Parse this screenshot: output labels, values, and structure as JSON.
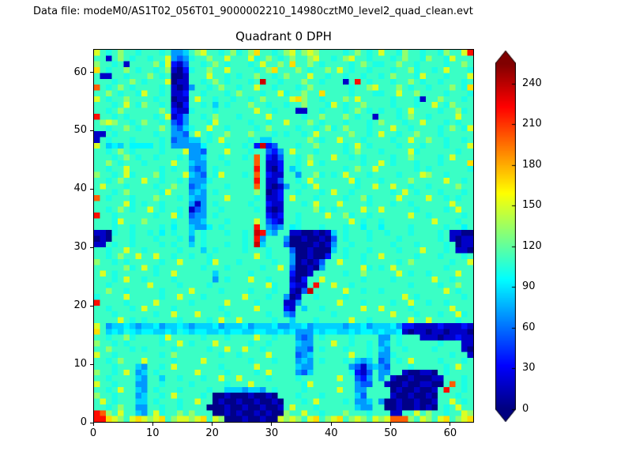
{
  "header": {
    "datafile_label": "Data file: modeM0/AS1T02_056T01_9000002210_14980cztM0_level2_quad_clean.evt"
  },
  "chart_data": {
    "type": "heatmap",
    "title": "Quadrant 0 DPH",
    "xlabel": "",
    "ylabel": "",
    "x_range": [
      0,
      64
    ],
    "y_range": [
      0,
      64
    ],
    "x_ticks": [
      0,
      10,
      20,
      30,
      40,
      50,
      60
    ],
    "y_ticks": [
      0,
      10,
      20,
      30,
      40,
      50,
      60
    ],
    "grid": false,
    "colorbar": {
      "colormap": "jet",
      "vmin": 0,
      "vmax": 255,
      "ticks": [
        0,
        30,
        60,
        90,
        120,
        150,
        180,
        210,
        240
      ],
      "extend": "both",
      "position": "right"
    },
    "matrix": {
      "description": "64x64 detector plane histogram counts, one char per pixel, rows listed top (y=63) to bottom (y=0), chars map to approximate count values via char_values",
      "order": "top-to-bottom",
      "char_values": {
        "0": 2,
        "1": 18,
        "2": 36,
        "3": 54,
        "4": 70,
        "5": 84,
        "6": 94,
        "7": 102,
        "8": 110,
        "9": 132,
        "a": 150,
        "b": 168,
        "c": 200,
        "d": 220,
        "e": 236,
        "f": 252
      },
      "rows": [
        [
          "a8789887",
          "88878445",
          "89a88789",
          "789b8878",
          "9a89a988",
          "88789878",
          "a8879887",
          "887988ad"
        ],
        [
          "88189878",
          "8788a434",
          "788988a8",
          "88a78987",
          "89889a88",
          "789a8878",
          "88789887",
          "9887a888"
        ],
        [
          "98878188",
          "8897a213",
          "88789878",
          "8878a889",
          "8b889878",
          "88878987",
          "78898878",
          "88878898"
        ],
        [
          "b8788987",
          "88789102",
          "788988a8",
          "888789b8",
          "88987889",
          "8a878878",
          "88788978",
          "878a8887"
        ],
        [
          "81188788",
          "89878001",
          "888a8878",
          "78898878",
          "9888a887",
          "88788788",
          "7898887a",
          "8887888a"
        ],
        [
          "88878898",
          "7888a011",
          "88789878",
          "8878e887",
          "88898878",
          "8818d878",
          "88788987",
          "88788878"
        ],
        [
          "c8789878",
          "88878101",
          "48878988",
          "788a8878",
          "88789888",
          "8887889a",
          "88898788",
          "7888987b"
        ],
        [
          "88987887",
          "a8878112",
          "88788878",
          "9888788a",
          "788988b8",
          "88878887",
          "788a8898",
          "88878887"
        ],
        [
          "a8788988",
          "88788011",
          "8a887887",
          "88789888",
          "8ab98878",
          "8898a888",
          "88788871",
          "88988878"
        ],
        [
          "88878a87",
          "98878102",
          "88785878",
          "88988788",
          "78898887",
          "a8788988",
          "88788878",
          "8a879888"
        ],
        [
          "88789888",
          "88898211",
          "78887888",
          "888a8878",
          "88118878",
          "88789878",
          "78878a88",
          "88788978"
        ],
        [
          "d8878788",
          "8878a124",
          "88789888",
          "78888a88",
          "88878898",
          "88987881",
          "88878988",
          "78888a88"
        ],
        [
          "89a98878",
          "98878324",
          "8887a888",
          "88788788",
          "a8889878",
          "88788878",
          "9888788a",
          "88878788"
        ],
        [
          "88788987",
          "88898435",
          "788a8878",
          "88878988",
          "88788789",
          "78988878",
          "88a88788",
          "8878987a"
        ],
        [
          "11878888",
          "88788443",
          "8a878898",
          "88988878",
          "78878a88",
          "88898878",
          "a8878898",
          "88788888"
        ],
        [
          "18788878",
          "88878344",
          "55878a88",
          "88785588",
          "88889878",
          "8a888788",
          "88788a88",
          "98878878"
        ],
        [
          "a8565866",
          "66878444",
          "44688878",
          "8782e238",
          "88788988",
          "8878a878",
          "88878887",
          "8887888a"
        ],
        [
          "88789878",
          "8887888a",
          "443888a8",
          "88788324",
          "8a888788",
          "88789888",
          "78888a78",
          "88888788"
        ],
        [
          "88878987",
          "88788878",
          "44588788",
          "878c8213",
          "88789888",
          "a8878788",
          "88788988",
          "8878a888"
        ],
        [
          "88987888",
          "78888a88",
          "54488878",
          "888c8112",
          "8878a878",
          "88888788",
          "a8788878",
          "8878888b"
        ],
        [
          "88788a88",
          "88878788",
          "43487888",
          "888d8102",
          "85788888",
          "8878988a",
          "88888878",
          "78888887"
        ],
        [
          "98878a78",
          "8897888a",
          "54387a88",
          "878c8211",
          "88488978",
          "78a88878",
          "8887888a",
          "98878888"
        ],
        [
          "88789888",
          "a8878878",
          "44478888",
          "888d8113",
          "8878a888",
          "888a7888",
          "78888988",
          "888a8878"
        ],
        [
          "8a888788",
          "88788988",
          "34588878",
          "888c8101",
          "48878a88",
          "8888788a",
          "88a88788",
          "78888988"
        ],
        [
          "88878988",
          "8887a888",
          "45487888",
          "88898012",
          "88788878",
          "a8878888",
          "8878a878",
          "88788878"
        ],
        [
          "c8788878",
          "88988878",
          "544888a8",
          "88878112",
          "8a888788",
          "88788978",
          "888a8888",
          "a8878788"
        ],
        [
          "88888a78",
          "78878888",
          "41487888",
          "88788211",
          "88878a88",
          "8a888878",
          "88788788",
          "8888a888"
        ],
        [
          "88789878",
          "8a878878",
          "13488788",
          "88878101",
          "88888978",
          "78888a88",
          "a8888878",
          "88878a88"
        ],
        [
          "d8878888",
          "88788a78",
          "34487888",
          "88888212",
          "8878888a",
          "88978878",
          "88888a88",
          "78888878"
        ],
        [
          "8887a888",
          "98888788",
          "44588878",
          "888a8321",
          "88788888",
          "888a8788",
          "78888888",
          "8a888788"
        ],
        [
          "88878878",
          "88878688",
          "54468788",
          "888d8434",
          "86788878",
          "88788688",
          "68888788",
          "88878868"
        ],
        [
          "11078878",
          "87868788",
          "58788878",
          "878ed548",
          "81100101",
          "58788878",
          "87888788",
          "88781100"
        ],
        [
          "01088878",
          "88788878",
          "48788888",
          "878d4888",
          "40010010",
          "38788878",
          "88878888",
          "88781011"
        ],
        [
          "11878878",
          "88878788",
          "58788878",
          "878e5888",
          "30000101",
          "48878888",
          "88788878",
          "88878011"
        ],
        [
          "88788a88",
          "78888878",
          "88587888",
          "87888788",
          "83001000",
          "58788878",
          "8887888a",
          "88878110"
        ],
        [
          "8878988a",
          "88a88788",
          "78878888",
          "888a8788",
          "84001002",
          "88788788",
          "a8888878",
          "88788878"
        ],
        [
          "98878788",
          "888788a8",
          "8887a888",
          "78888878",
          "84010138",
          "8a888788",
          "88878988",
          "8888788a"
        ],
        [
          "88888978",
          "a8788888",
          "88788878",
          "8888788a",
          "83001048",
          "88888a78",
          "78a88888",
          "88878888"
        ],
        [
          "8a878888",
          "88788a88",
          "88885888",
          "88788888",
          "82001888",
          "88788988",
          "888a8788",
          "78888a88"
        ],
        [
          "88878a88",
          "78888788",
          "88884878",
          "88a88788",
          "810288a8",
          "88888788",
          "88788888",
          "8a887888"
        ],
        [
          "88788888",
          "8a888878",
          "88878888",
          "88888a78",
          "82118d88",
          "a8878888",
          "88888788",
          "88788988"
        ],
        [
          "88988788",
          "88878888",
          "a8888788",
          "88788878",
          "8103e888",
          "88a88788",
          "78888888",
          "888a8788"
        ],
        [
          "78888a88",
          "888788a8",
          "88788888",
          "8a888788",
          "40188788",
          "88788888",
          "8888a878",
          "88888878"
        ],
        [
          "d8888788",
          "88a88888",
          "788888a8",
          "88878888",
          "11488888",
          "8a888788",
          "88788a88",
          "78878888"
        ],
        [
          "88788878",
          "a8888788",
          "88888788",
          "888a8888",
          "21858878",
          "88888a88",
          "a8888788",
          "8888a888"
        ],
        [
          "88878888",
          "88788a88",
          "8a888878",
          "88888788",
          "43888888",
          "78888888",
          "88a88878",
          "88788a78"
        ],
        [
          "8888a878",
          "78888878",
          "88878a88",
          "a8888878",
          "85888788",
          "888a8878",
          "88888a88",
          "a8888788"
        ],
        [
          "a8455654",
          "55645565",
          "45556455",
          "56455564",
          "45564555",
          "55455645",
          "55642211",
          "11211121"
        ],
        [
          "b8565765",
          "66556576",
          "56655656",
          "65566556",
          "56444656",
          "65565665",
          "65561011",
          "01101110"
        ],
        [
          "88788978",
          "8887a888",
          "88788878",
          "888a8878",
          "88434878",
          "88878888",
          "44878881",
          "11011211"
        ],
        [
          "98878788",
          "888788a8",
          "7888a888",
          "88788788",
          "88544888",
          "a8878878",
          "45878888",
          "88788811"
        ],
        [
          "88988878",
          "78888788",
          "888788a8",
          "8a887888",
          "88443878",
          "88788878",
          "54887888",
          "87888810"
        ],
        [
          "a8878888",
          "88878988",
          "88888788",
          "78888a88",
          "88345888",
          "888a8878",
          "44788888",
          "88887881"
        ],
        [
          "88789888",
          "a8888788",
          "88a88888",
          "88788878",
          "88454878",
          "88785458",
          "34878a88",
          "88788878"
        ],
        [
          "88878885",
          "48878a88",
          "88888788",
          "888a8888",
          "88544888",
          "88843145",
          "43888788",
          "88878a88"
        ],
        [
          "98878a84",
          "58788888",
          "8a888878",
          "88878a88",
          "88435888",
          "88872138",
          "44881001",
          "10878888"
        ],
        [
          "88788885",
          "48858878",
          "88788a88",
          "a8888788",
          "88788888",
          "8a883248",
          "48100100",
          "01188878"
        ],
        [
          "a8878884",
          "48878888",
          "78888878",
          "88a88888",
          "8887a888",
          "88884338",
          "81001001",
          "1008c878"
        ],
        [
          "8878a885",
          "48788878",
          "88878855",
          "54554878",
          "88878888",
          "8a884488",
          "88010010",
          "018d8878"
        ],
        [
          "98878884",
          "58878a88",
          "88780010",
          "00100108",
          "88788878",
          "88885388",
          "88100100",
          "10888788"
        ],
        [
          "8a878885",
          "58788878",
          "8a880100",
          "10010010",
          "88878a88",
          "88784458",
          "40010010",
          "0188a878"
        ],
        [
          "88789884",
          "48878878",
          "88800010",
          "01001001",
          "8a888788",
          "88885448",
          "80010010",
          "10878a88"
        ],
        [
          "dc98a885",
          "48a78898",
          "98880010",
          "10010100",
          "988a8878",
          "88988878",
          "881188a8",
          "988788a9"
        ],
        [
          "ddba98ab",
          "a9ab89aa",
          "9ab8a900",
          "0100100a",
          "9a98ab89",
          "ab89a98a",
          "9accc98a",
          "98ab89ab"
        ]
      ]
    }
  }
}
